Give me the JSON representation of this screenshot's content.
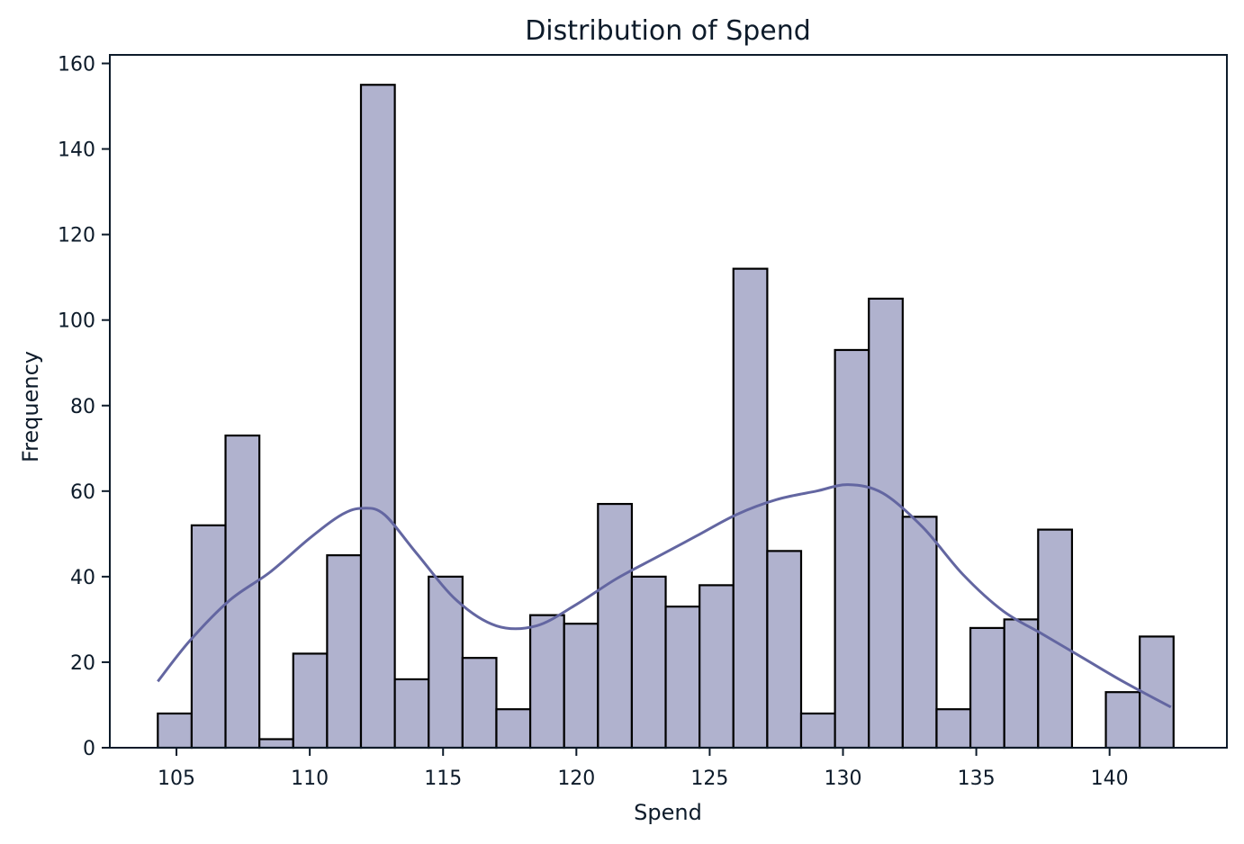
{
  "chart_data": {
    "type": "bar",
    "title": "Distribution of Spend",
    "xlabel": "Spend",
    "ylabel": "Frequency",
    "xlim": [
      102.5,
      144.4
    ],
    "ylim": [
      0,
      162
    ],
    "xticks": [
      105,
      110,
      115,
      120,
      125,
      130,
      135,
      140
    ],
    "yticks": [
      0,
      20,
      40,
      60,
      80,
      100,
      120,
      140,
      160
    ],
    "bin_start": 104.3,
    "bin_width": 1.27,
    "counts": [
      8,
      52,
      73,
      2,
      22,
      45,
      155,
      16,
      40,
      21,
      9,
      31,
      29,
      57,
      40,
      33,
      38,
      112,
      46,
      8,
      93,
      105,
      54,
      9,
      28,
      30,
      51,
      0,
      13,
      26
    ],
    "kde": {
      "x": [
        104.3,
        105.5,
        107.0,
        108.5,
        110.0,
        111.2,
        112.0,
        112.8,
        114.0,
        115.5,
        117.0,
        118.5,
        120.0,
        121.5,
        123.0,
        124.5,
        126.0,
        127.5,
        129.0,
        130.2,
        131.5,
        133.0,
        134.5,
        136.0,
        137.5,
        139.0,
        140.5,
        142.3
      ],
      "y": [
        15.5,
        25.0,
        34.5,
        41.0,
        49.0,
        54.5,
        56.0,
        54.5,
        45.5,
        34.5,
        28.5,
        28.5,
        33.5,
        39.5,
        44.5,
        49.5,
        54.5,
        58.0,
        60.0,
        61.5,
        59.5,
        51.5,
        40.5,
        32.0,
        26.5,
        21.0,
        15.5,
        9.5
      ]
    },
    "grid": false,
    "colors": {
      "bar_fill": "#b0b2ce",
      "bar_edge": "#000000",
      "kde_line": "#6366a1",
      "axis": "#0d1b2a",
      "text": "#0d1b2a"
    }
  }
}
